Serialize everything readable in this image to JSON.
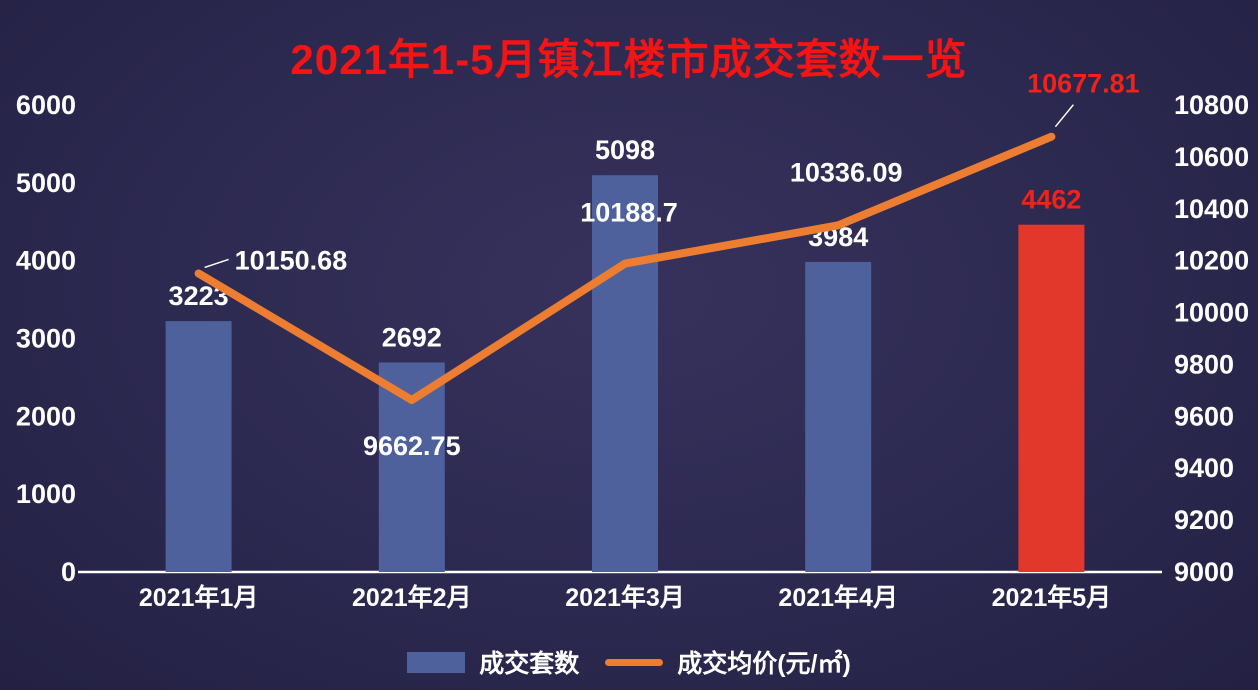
{
  "title": "2021年1-5月镇江楼市成交套数一览",
  "colors": {
    "background": "#2c2950",
    "title": "#f51414",
    "axis_text": "#ffffff",
    "bar": "#4e619d",
    "bar_highlight": "#e2372b",
    "line": "#ed7d31",
    "label": "#ffffff",
    "label_highlight": "#f32219",
    "baseline": "#ffffff"
  },
  "legend": [
    {
      "label": "成交套数",
      "swatch": "bar"
    },
    {
      "label": "成交均价(元/㎡)",
      "swatch": "line"
    }
  ],
  "chart_data": {
    "type": "bar+line combo",
    "title": "2021年1-5月镇江楼市成交套数一览",
    "categories": [
      "2021年1月",
      "2021年2月",
      "2021年3月",
      "2021年4月",
      "2021年5月"
    ],
    "series": [
      {
        "name": "成交套数",
        "type": "bar",
        "axis": "left",
        "values": [
          3223,
          2692,
          5098,
          3984,
          4462
        ]
      },
      {
        "name": "成交均价(元/㎡)",
        "type": "line",
        "axis": "right",
        "values": [
          10150.68,
          9662.75,
          10188.7,
          10336.09,
          10677.81
        ]
      }
    ],
    "bar_highlight_index": 4,
    "line_highlight_index": 4,
    "left_axis": {
      "min": 0,
      "max": 6000,
      "step": 1000
    },
    "right_axis": {
      "min": 9000,
      "max": 10800,
      "step": 200
    },
    "grid": false,
    "legend_position": "bottom"
  }
}
